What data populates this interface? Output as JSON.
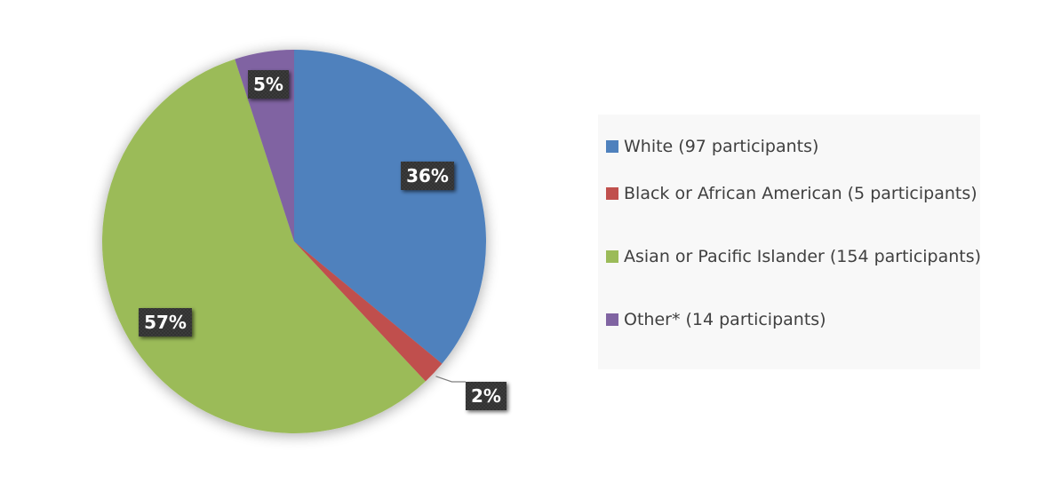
{
  "chart_data": {
    "type": "pie",
    "title": "",
    "slices": [
      {
        "label": "White (97 participants)",
        "value": 36,
        "data_label": "36%",
        "color": "#4f81bd"
      },
      {
        "label": "Black or African American (5 participants)",
        "value": 2,
        "data_label": "2%",
        "color": "#c0504d"
      },
      {
        "label": "Asian or Pacific Islander (154 participants)",
        "value": 57,
        "data_label": "57%",
        "color": "#9bbb59"
      },
      {
        "label": "Other* (14 participants)",
        "value": 5,
        "data_label": "5%",
        "color": "#8064a2"
      }
    ],
    "start_angle": "top",
    "direction": "clockwise",
    "legend": "right"
  }
}
